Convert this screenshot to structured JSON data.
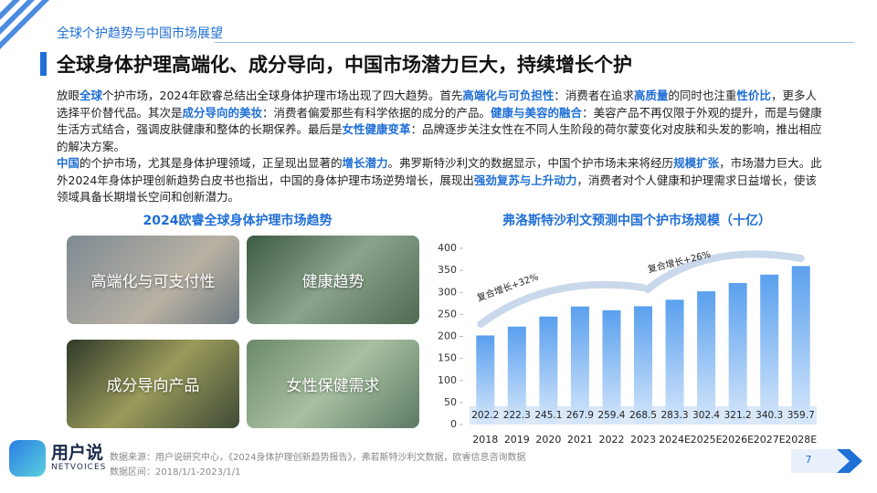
{
  "header": {
    "section": "全球个护趋势与中国市场展望",
    "title": "全球身体护理高端化、成分导向，中国市场潜力巨大，持续增长个护"
  },
  "intro": {
    "paragraphs": [
      [
        {
          "t": "放眼"
        },
        {
          "t": "全球",
          "hl": true
        },
        {
          "t": "个护市场，2024年欧睿总结出全球身体护理市场出现了四大趋势。首先"
        },
        {
          "t": "高端化与可负担性",
          "hl": true
        },
        {
          "t": "：消费者在追求"
        },
        {
          "t": "高质量",
          "hl": true
        },
        {
          "t": "的同时也注重"
        },
        {
          "t": "性价比",
          "hl": true
        },
        {
          "t": "，更多人选择平价替代品。其次是"
        },
        {
          "t": "成分导向的美妆",
          "hl": true
        },
        {
          "t": "：消费者偏爱那些有科学依据的成分的产品。"
        },
        {
          "t": "健康与美容的融合",
          "hl": true
        },
        {
          "t": "：美容产品不再仅限于外观的提升，而是与健康生活方式结合，强调皮肤健康和整体的长期保养。最后是"
        },
        {
          "t": "女性健康变革",
          "hl": true
        },
        {
          "t": "：品牌逐步关注女性在不同人生阶段的荷尔蒙变化对皮肤和头发的影响，推出相应的解决方案。"
        }
      ],
      [
        {
          "t": "中国",
          "hl": true
        },
        {
          "t": "的个护市场，尤其是身体护理领域，正呈现出显著的"
        },
        {
          "t": "增长潜力",
          "hl": true
        },
        {
          "t": "。弗罗斯特沙利文的数据显示，中国个护市场未来将经历"
        },
        {
          "t": "规模扩张",
          "hl": true
        },
        {
          "t": "，市场潜力巨大。此外2024年身体护理创新趋势白皮书也指出，中国的身体护理市场逆势增长，展现出"
        },
        {
          "t": "强劲复苏与上升动力",
          "hl": true
        },
        {
          "t": "，消费者对个人健康和护理需求日益增长，使该领域具备长期增长空间和创新潜力。"
        }
      ]
    ]
  },
  "trends": {
    "title": "2024欧睿全球身体护理市场趋势",
    "items": [
      "高端化与可支付性",
      "健康趋势",
      "成分导向产品",
      "女性保健需求"
    ]
  },
  "chart_data": {
    "type": "bar",
    "title": "弗洛斯特沙利文预测中国个护市场规模（十亿）",
    "categories": [
      "2018",
      "2019",
      "2020",
      "2021",
      "2022",
      "2023",
      "2024E",
      "2025E",
      "2026E",
      "2027E",
      "2028E"
    ],
    "values": [
      202.2,
      222.3,
      245.1,
      267.9,
      259.4,
      268.5,
      283.3,
      302.4,
      321.2,
      340.3,
      359.7
    ],
    "color": "#5aa0ee",
    "ylim": [
      0,
      400
    ],
    "yticks": [
      0,
      50,
      100,
      150,
      200,
      250,
      300,
      350,
      400
    ],
    "annotations": [
      "复合增长+32%",
      "复合增长+26%"
    ]
  },
  "footer": {
    "logo": "用户说",
    "logo_sub": "NETVOICES",
    "source": "数据来源：用户说研究中心，《2024身体护理创新趋势报告》，弗若斯特沙利文数据，欧睿信息咨询数据",
    "range": "数据区间：2018/1/1-2023/1/1",
    "page": "7"
  }
}
